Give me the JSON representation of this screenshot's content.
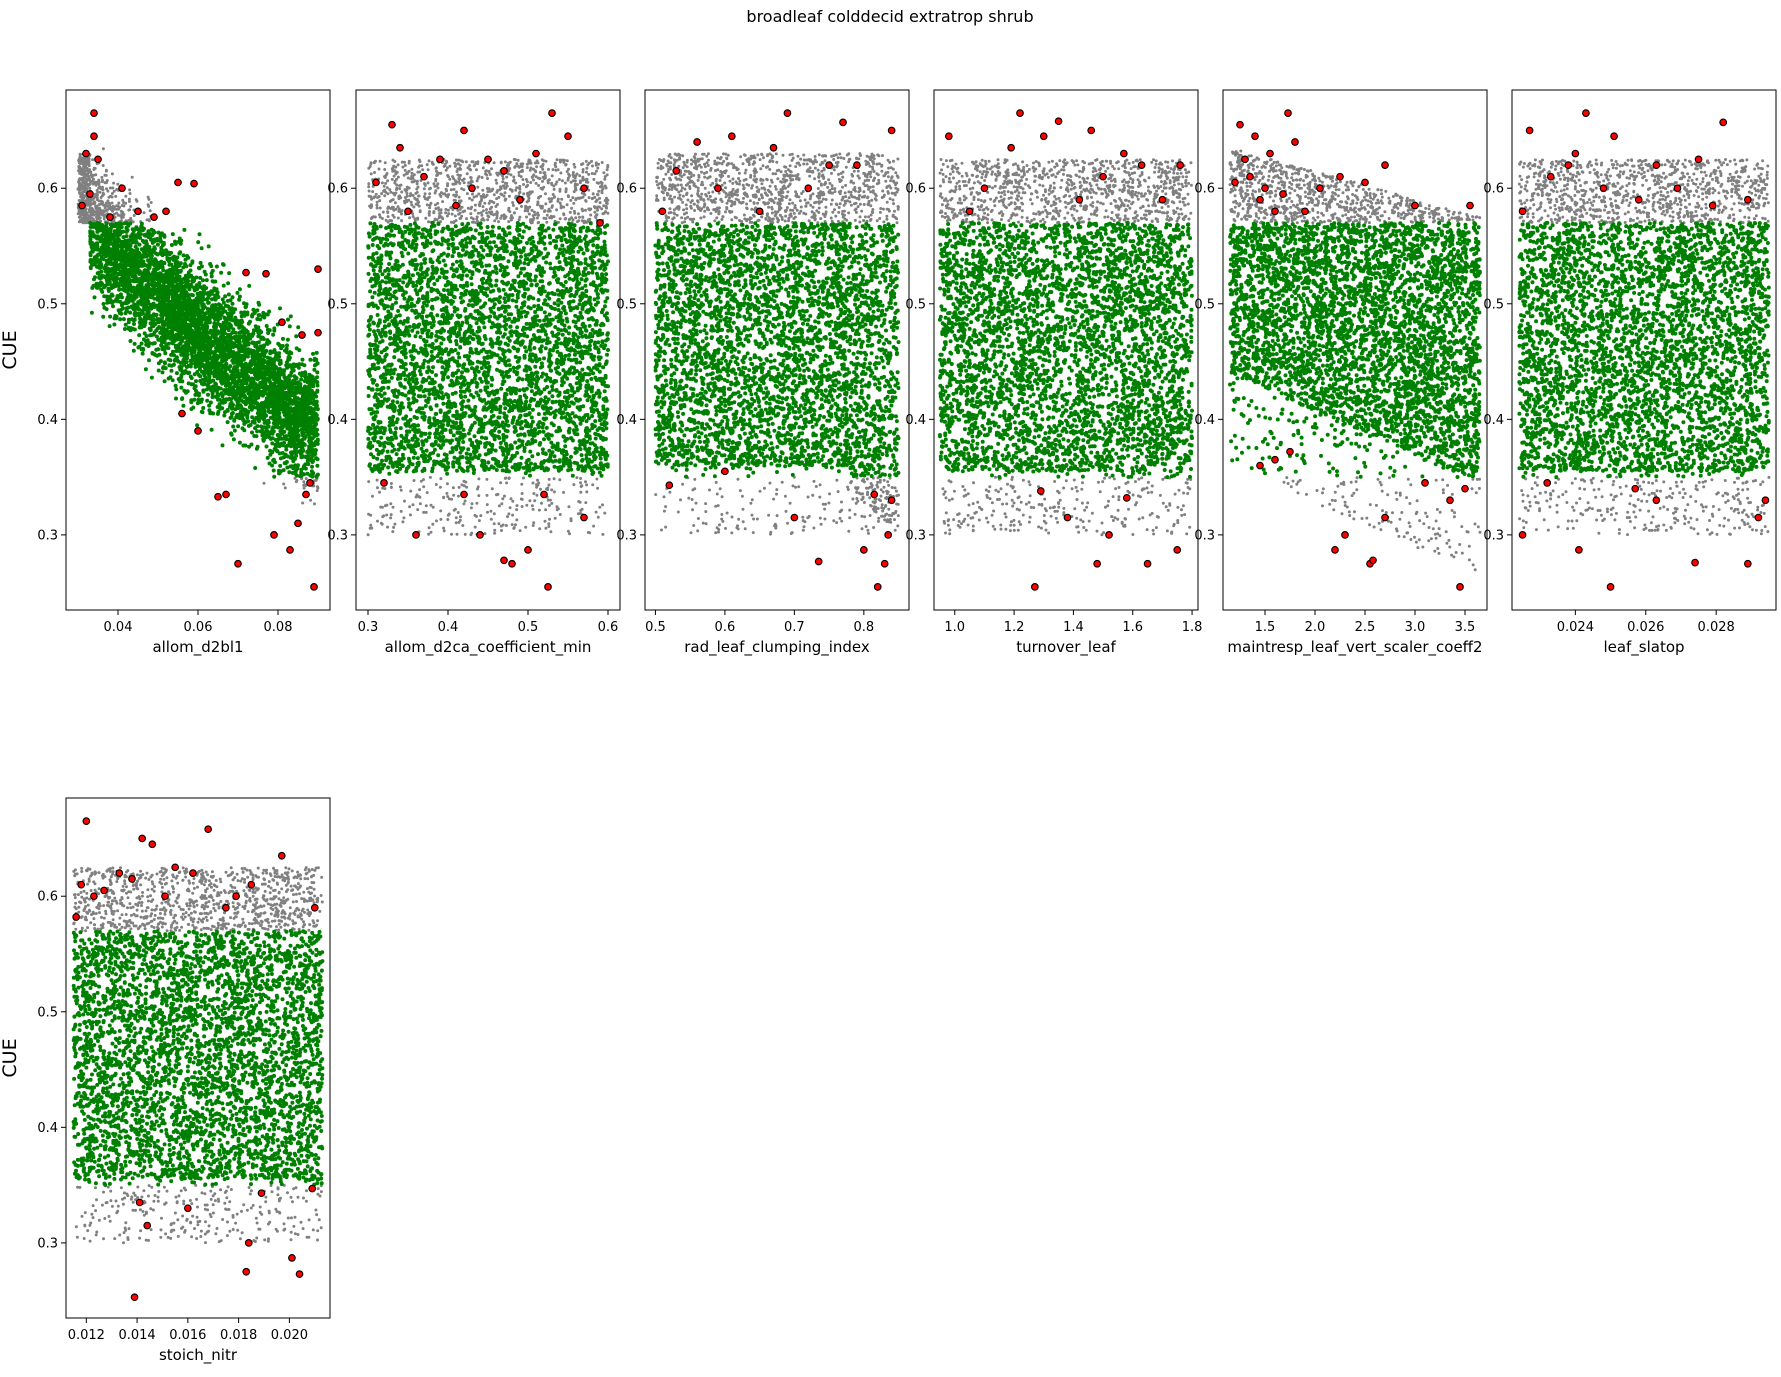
{
  "suptitle": "broadleaf colddecid extratrop shrub",
  "colors": {
    "all_samples": "#808080",
    "within_range": "#008000",
    "highlighted": "#ff0000",
    "highlight_edge": "#000000",
    "axes": "#000000"
  },
  "chart_data": [
    {
      "type": "scatter",
      "xlabel": "allom_d2bl1",
      "ylabel": "CUE",
      "xlim": [
        0.027,
        0.093
      ],
      "ylim": [
        0.235,
        0.685
      ],
      "xticks": [
        0.04,
        0.06,
        0.08
      ],
      "xtick_labels": [
        "0.04",
        "0.06",
        "0.08"
      ],
      "yticks": [
        0.3,
        0.4,
        0.5,
        0.6
      ],
      "ytick_labels": [
        "0.3",
        "0.4",
        "0.5",
        "0.6"
      ],
      "x_range": [
        0.03,
        0.09
      ],
      "pattern": "trend_left",
      "highlighted_points": [
        [
          0.031,
          0.585
        ],
        [
          0.032,
          0.63
        ],
        [
          0.033,
          0.595
        ],
        [
          0.034,
          0.645
        ],
        [
          0.034,
          0.665
        ],
        [
          0.035,
          0.625
        ],
        [
          0.038,
          0.575
        ],
        [
          0.041,
          0.6
        ],
        [
          0.045,
          0.58
        ],
        [
          0.049,
          0.575
        ],
        [
          0.052,
          0.58
        ],
        [
          0.055,
          0.605
        ],
        [
          0.059,
          0.604
        ],
        [
          0.06,
          0.39
        ],
        [
          0.056,
          0.405
        ],
        [
          0.065,
          0.333
        ],
        [
          0.067,
          0.335
        ],
        [
          0.07,
          0.275
        ],
        [
          0.072,
          0.527
        ],
        [
          0.077,
          0.526
        ],
        [
          0.079,
          0.3
        ],
        [
          0.081,
          0.484
        ],
        [
          0.083,
          0.287
        ],
        [
          0.085,
          0.31
        ],
        [
          0.086,
          0.473
        ],
        [
          0.087,
          0.335
        ],
        [
          0.088,
          0.345
        ],
        [
          0.089,
          0.255
        ],
        [
          0.09,
          0.475
        ],
        [
          0.09,
          0.53
        ]
      ]
    },
    {
      "type": "scatter",
      "xlabel": "allom_d2ca_coefficient_min",
      "ylabel": "",
      "xlim": [
        0.285,
        0.615
      ],
      "ylim": [
        0.235,
        0.685
      ],
      "xticks": [
        0.3,
        0.4,
        0.5,
        0.6
      ],
      "xtick_labels": [
        "0.3",
        "0.4",
        "0.5",
        "0.6"
      ],
      "yticks": [
        0.3,
        0.4,
        0.5,
        0.6
      ],
      "ytick_labels": [
        "0.3",
        "0.4",
        "0.5",
        "0.6"
      ],
      "x_range": [
        0.3,
        0.6
      ],
      "pattern": "uniform",
      "highlighted_points": [
        [
          0.31,
          0.605
        ],
        [
          0.33,
          0.655
        ],
        [
          0.34,
          0.635
        ],
        [
          0.35,
          0.58
        ],
        [
          0.37,
          0.61
        ],
        [
          0.39,
          0.625
        ],
        [
          0.41,
          0.585
        ],
        [
          0.42,
          0.65
        ],
        [
          0.43,
          0.6
        ],
        [
          0.45,
          0.625
        ],
        [
          0.47,
          0.615
        ],
        [
          0.49,
          0.59
        ],
        [
          0.51,
          0.63
        ],
        [
          0.53,
          0.665
        ],
        [
          0.55,
          0.645
        ],
        [
          0.57,
          0.6
        ],
        [
          0.59,
          0.57
        ],
        [
          0.32,
          0.345
        ],
        [
          0.36,
          0.3
        ],
        [
          0.42,
          0.335
        ],
        [
          0.44,
          0.3
        ],
        [
          0.47,
          0.278
        ],
        [
          0.48,
          0.275
        ],
        [
          0.5,
          0.287
        ],
        [
          0.52,
          0.335
        ],
        [
          0.525,
          0.255
        ],
        [
          0.57,
          0.315
        ]
      ]
    },
    {
      "type": "scatter",
      "xlabel": "rad_leaf_clumping_index",
      "ylabel": "",
      "xlim": [
        0.485,
        0.865
      ],
      "ylim": [
        0.235,
        0.685
      ],
      "xticks": [
        0.5,
        0.6,
        0.7,
        0.8
      ],
      "xtick_labels": [
        "0.5",
        "0.6",
        "0.7",
        "0.8"
      ],
      "yticks": [
        0.3,
        0.4,
        0.5,
        0.6
      ],
      "ytick_labels": [
        "0.3",
        "0.4",
        "0.5",
        "0.6"
      ],
      "x_range": [
        0.5,
        0.85
      ],
      "pattern": "trend_right_low",
      "highlighted_points": [
        [
          0.51,
          0.58
        ],
        [
          0.53,
          0.615
        ],
        [
          0.56,
          0.64
        ],
        [
          0.59,
          0.6
        ],
        [
          0.61,
          0.645
        ],
        [
          0.65,
          0.58
        ],
        [
          0.67,
          0.635
        ],
        [
          0.69,
          0.665
        ],
        [
          0.72,
          0.6
        ],
        [
          0.75,
          0.62
        ],
        [
          0.77,
          0.657
        ],
        [
          0.79,
          0.62
        ],
        [
          0.84,
          0.65
        ],
        [
          0.52,
          0.343
        ],
        [
          0.6,
          0.355
        ],
        [
          0.7,
          0.315
        ],
        [
          0.735,
          0.277
        ],
        [
          0.8,
          0.287
        ],
        [
          0.815,
          0.335
        ],
        [
          0.82,
          0.255
        ],
        [
          0.83,
          0.275
        ],
        [
          0.835,
          0.3
        ],
        [
          0.84,
          0.33
        ]
      ]
    },
    {
      "type": "scatter",
      "xlabel": "turnover_leaf",
      "ylabel": "",
      "xlim": [
        0.93,
        1.82
      ],
      "ylim": [
        0.235,
        0.685
      ],
      "xticks": [
        1.0,
        1.2,
        1.4,
        1.6,
        1.8
      ],
      "xtick_labels": [
        "1.0",
        "1.2",
        "1.4",
        "1.6",
        "1.8"
      ],
      "yticks": [
        0.3,
        0.4,
        0.5,
        0.6
      ],
      "ytick_labels": [
        "0.3",
        "0.4",
        "0.5",
        "0.6"
      ],
      "x_range": [
        0.95,
        1.8
      ],
      "pattern": "uniform",
      "highlighted_points": [
        [
          0.98,
          0.645
        ],
        [
          1.05,
          0.58
        ],
        [
          1.1,
          0.6
        ],
        [
          1.19,
          0.635
        ],
        [
          1.22,
          0.665
        ],
        [
          1.3,
          0.645
        ],
        [
          1.35,
          0.658
        ],
        [
          1.42,
          0.59
        ],
        [
          1.46,
          0.65
        ],
        [
          1.5,
          0.61
        ],
        [
          1.57,
          0.63
        ],
        [
          1.63,
          0.62
        ],
        [
          1.7,
          0.59
        ],
        [
          1.76,
          0.62
        ],
        [
          1.27,
          0.255
        ],
        [
          1.29,
          0.338
        ],
        [
          1.38,
          0.315
        ],
        [
          1.48,
          0.275
        ],
        [
          1.52,
          0.3
        ],
        [
          1.58,
          0.332
        ],
        [
          1.65,
          0.275
        ],
        [
          1.75,
          0.287
        ]
      ]
    },
    {
      "type": "scatter",
      "xlabel": "maintresp_leaf_vert_scaler_coeff2",
      "ylabel": "",
      "xlim": [
        1.08,
        3.72
      ],
      "ylim": [
        0.235,
        0.685
      ],
      "xticks": [
        1.5,
        2.0,
        2.5,
        3.0,
        3.5
      ],
      "xtick_labels": [
        "1.5",
        "2.0",
        "2.5",
        "3.0",
        "3.5"
      ],
      "yticks": [
        0.3,
        0.4,
        0.5,
        0.6
      ],
      "ytick_labels": [
        "0.3",
        "0.4",
        "0.5",
        "0.6"
      ],
      "x_range": [
        1.15,
        3.65
      ],
      "pattern": "trend_mid",
      "highlighted_points": [
        [
          1.2,
          0.605
        ],
        [
          1.25,
          0.655
        ],
        [
          1.3,
          0.625
        ],
        [
          1.35,
          0.61
        ],
        [
          1.4,
          0.645
        ],
        [
          1.45,
          0.59
        ],
        [
          1.5,
          0.6
        ],
        [
          1.55,
          0.63
        ],
        [
          1.6,
          0.58
        ],
        [
          1.68,
          0.595
        ],
        [
          1.73,
          0.665
        ],
        [
          1.8,
          0.64
        ],
        [
          1.9,
          0.58
        ],
        [
          2.05,
          0.6
        ],
        [
          2.25,
          0.61
        ],
        [
          2.5,
          0.605
        ],
        [
          2.7,
          0.62
        ],
        [
          3.0,
          0.585
        ],
        [
          3.55,
          0.585
        ],
        [
          1.45,
          0.36
        ],
        [
          1.6,
          0.365
        ],
        [
          1.75,
          0.372
        ],
        [
          2.2,
          0.287
        ],
        [
          2.3,
          0.3
        ],
        [
          2.55,
          0.275
        ],
        [
          2.58,
          0.278
        ],
        [
          2.7,
          0.315
        ],
        [
          3.1,
          0.345
        ],
        [
          3.35,
          0.33
        ],
        [
          3.45,
          0.255
        ],
        [
          3.5,
          0.34
        ]
      ]
    },
    {
      "type": "scatter",
      "xlabel": "leaf_slatop",
      "ylabel": "",
      "xlim": [
        0.0222,
        0.0297
      ],
      "ylim": [
        0.235,
        0.685
      ],
      "xticks": [
        0.024,
        0.026,
        0.028
      ],
      "xtick_labels": [
        "0.024",
        "0.026",
        "0.028"
      ],
      "yticks": [
        0.3,
        0.4,
        0.5,
        0.6
      ],
      "ytick_labels": [
        "0.3",
        "0.4",
        "0.5",
        "0.6"
      ],
      "x_range": [
        0.0224,
        0.0295
      ],
      "pattern": "uniform",
      "highlighted_points": [
        [
          0.0225,
          0.58
        ],
        [
          0.0227,
          0.65
        ],
        [
          0.0233,
          0.61
        ],
        [
          0.0238,
          0.62
        ],
        [
          0.024,
          0.63
        ],
        [
          0.0243,
          0.665
        ],
        [
          0.0248,
          0.6
        ],
        [
          0.0251,
          0.645
        ],
        [
          0.0258,
          0.59
        ],
        [
          0.0263,
          0.62
        ],
        [
          0.0269,
          0.6
        ],
        [
          0.0275,
          0.625
        ],
        [
          0.0279,
          0.585
        ],
        [
          0.0282,
          0.657
        ],
        [
          0.0289,
          0.59
        ],
        [
          0.0225,
          0.3
        ],
        [
          0.0232,
          0.345
        ],
        [
          0.0241,
          0.287
        ],
        [
          0.025,
          0.255
        ],
        [
          0.0257,
          0.34
        ],
        [
          0.0263,
          0.33
        ],
        [
          0.0274,
          0.276
        ],
        [
          0.0289,
          0.275
        ],
        [
          0.0292,
          0.315
        ],
        [
          0.0294,
          0.33
        ]
      ]
    },
    {
      "type": "scatter",
      "xlabel": "stoich_nitr",
      "ylabel": "CUE",
      "xlim": [
        0.0112,
        0.0216
      ],
      "ylim": [
        0.235,
        0.685
      ],
      "xticks": [
        0.012,
        0.014,
        0.016,
        0.018,
        0.02
      ],
      "xtick_labels": [
        "0.012",
        "0.014",
        "0.016",
        "0.018",
        "0.020"
      ],
      "yticks": [
        0.3,
        0.4,
        0.5,
        0.6
      ],
      "ytick_labels": [
        "0.3",
        "0.4",
        "0.5",
        "0.6"
      ],
      "x_range": [
        0.0115,
        0.0213
      ],
      "pattern": "uniform",
      "highlighted_points": [
        [
          0.0116,
          0.582
        ],
        [
          0.0118,
          0.61
        ],
        [
          0.012,
          0.665
        ],
        [
          0.0123,
          0.6
        ],
        [
          0.0127,
          0.605
        ],
        [
          0.0133,
          0.62
        ],
        [
          0.0138,
          0.615
        ],
        [
          0.0142,
          0.65
        ],
        [
          0.0146,
          0.645
        ],
        [
          0.0151,
          0.6
        ],
        [
          0.0155,
          0.625
        ],
        [
          0.0162,
          0.62
        ],
        [
          0.0168,
          0.658
        ],
        [
          0.0175,
          0.59
        ],
        [
          0.0179,
          0.6
        ],
        [
          0.0185,
          0.61
        ],
        [
          0.0197,
          0.635
        ],
        [
          0.021,
          0.59
        ],
        [
          0.0139,
          0.253
        ],
        [
          0.0141,
          0.335
        ],
        [
          0.0144,
          0.315
        ],
        [
          0.016,
          0.33
        ],
        [
          0.0183,
          0.275
        ],
        [
          0.0184,
          0.3
        ],
        [
          0.0189,
          0.343
        ],
        [
          0.0201,
          0.287
        ],
        [
          0.0204,
          0.273
        ],
        [
          0.0209,
          0.347
        ]
      ]
    }
  ]
}
